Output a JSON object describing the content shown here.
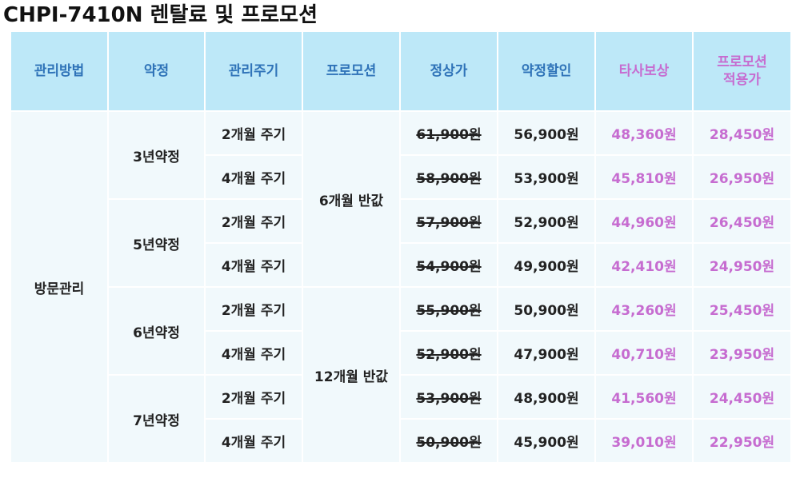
{
  "title": "CHPI-7410N 렌탈료 및 프로모션",
  "headers": [
    "관리방법",
    "약정",
    "관리주기",
    "프로모션",
    "정상가",
    "약정할인",
    "타사보상",
    "프로모션\n적용가"
  ],
  "method": "방문관리",
  "contracts": [
    "3년약정",
    "5년약정",
    "6년약정",
    "7년약정"
  ],
  "promotions": [
    "6개월 반값",
    "12개월 반값"
  ],
  "rows": [
    {
      "cycle": "2개월 주기",
      "regular": "61,900원",
      "contract_discount": "56,900원",
      "competitor_comp": "48,360원",
      "promo_price": "28,450원"
    },
    {
      "cycle": "4개월 주기",
      "regular": "58,900원",
      "contract_discount": "53,900원",
      "competitor_comp": "45,810원",
      "promo_price": "26,950원"
    },
    {
      "cycle": "2개월 주기",
      "regular": "57,900원",
      "contract_discount": "52,900원",
      "competitor_comp": "44,960원",
      "promo_price": "26,450원"
    },
    {
      "cycle": "4개월 주기",
      "regular": "54,900원",
      "contract_discount": "49,900원",
      "competitor_comp": "42,410원",
      "promo_price": "24,950원"
    },
    {
      "cycle": "2개월 주기",
      "regular": "55,900원",
      "contract_discount": "50,900원",
      "competitor_comp": "43,260원",
      "promo_price": "25,450원"
    },
    {
      "cycle": "4개월 주기",
      "regular": "52,900원",
      "contract_discount": "47,900원",
      "competitor_comp": "40,710원",
      "promo_price": "23,950원"
    },
    {
      "cycle": "2개월 주기",
      "regular": "53,900원",
      "contract_discount": "48,900원",
      "competitor_comp": "41,560원",
      "promo_price": "24,450원"
    },
    {
      "cycle": "4개월 주기",
      "regular": "50,900원",
      "contract_discount": "45,900원",
      "competitor_comp": "39,010원",
      "promo_price": "22,950원"
    }
  ],
  "colors": {
    "header_bg": "#bde8f8",
    "header_text": "#2f73b8",
    "accent_pink": "#c66cd0",
    "cell_bg": "#f1f9fc"
  }
}
